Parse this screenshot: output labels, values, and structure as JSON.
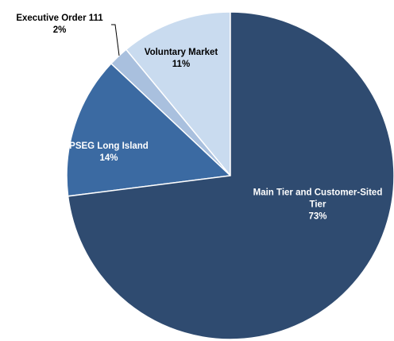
{
  "chart_data": {
    "type": "pie",
    "categories": [
      "Main Tier and Customer-Sited Tier",
      "PSEG Long Island",
      "Executive Order 111",
      "Voluntary Market"
    ],
    "values": [
      73,
      14,
      2,
      11
    ],
    "value_labels": [
      "73%",
      "14%",
      "2%",
      "11%"
    ],
    "colors": [
      "#2f4b70",
      "#3b6aa2",
      "#a9c0de",
      "#c9dbef"
    ]
  }
}
